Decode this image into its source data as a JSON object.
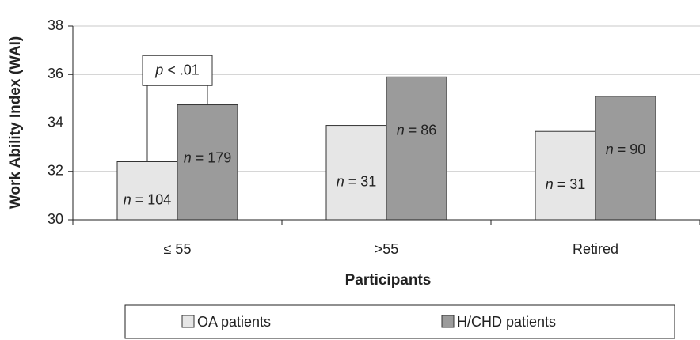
{
  "chart_data": {
    "type": "bar",
    "ylabel": "Work Ability Index (WAI)",
    "xlabel": "Participants",
    "categories": [
      "≤ 55",
      ">55",
      "Retired"
    ],
    "series": [
      {
        "name": "OA patients",
        "color": "#e6e6e6",
        "values": [
          32.4,
          33.9,
          33.65
        ],
        "n_labels": [
          "n = 104",
          "n = 31",
          "n = 31"
        ]
      },
      {
        "name": "H/CHD patients",
        "color": "#9b9b9b",
        "values": [
          34.75,
          35.9,
          35.1
        ],
        "n_labels": [
          "n = 179",
          "n = 86",
          "n = 90"
        ]
      }
    ],
    "ylim": [
      30,
      38
    ],
    "yticks": [
      30,
      32,
      34,
      36,
      38
    ],
    "grid": true,
    "annotation": "p < .01",
    "legend": "bottom"
  }
}
